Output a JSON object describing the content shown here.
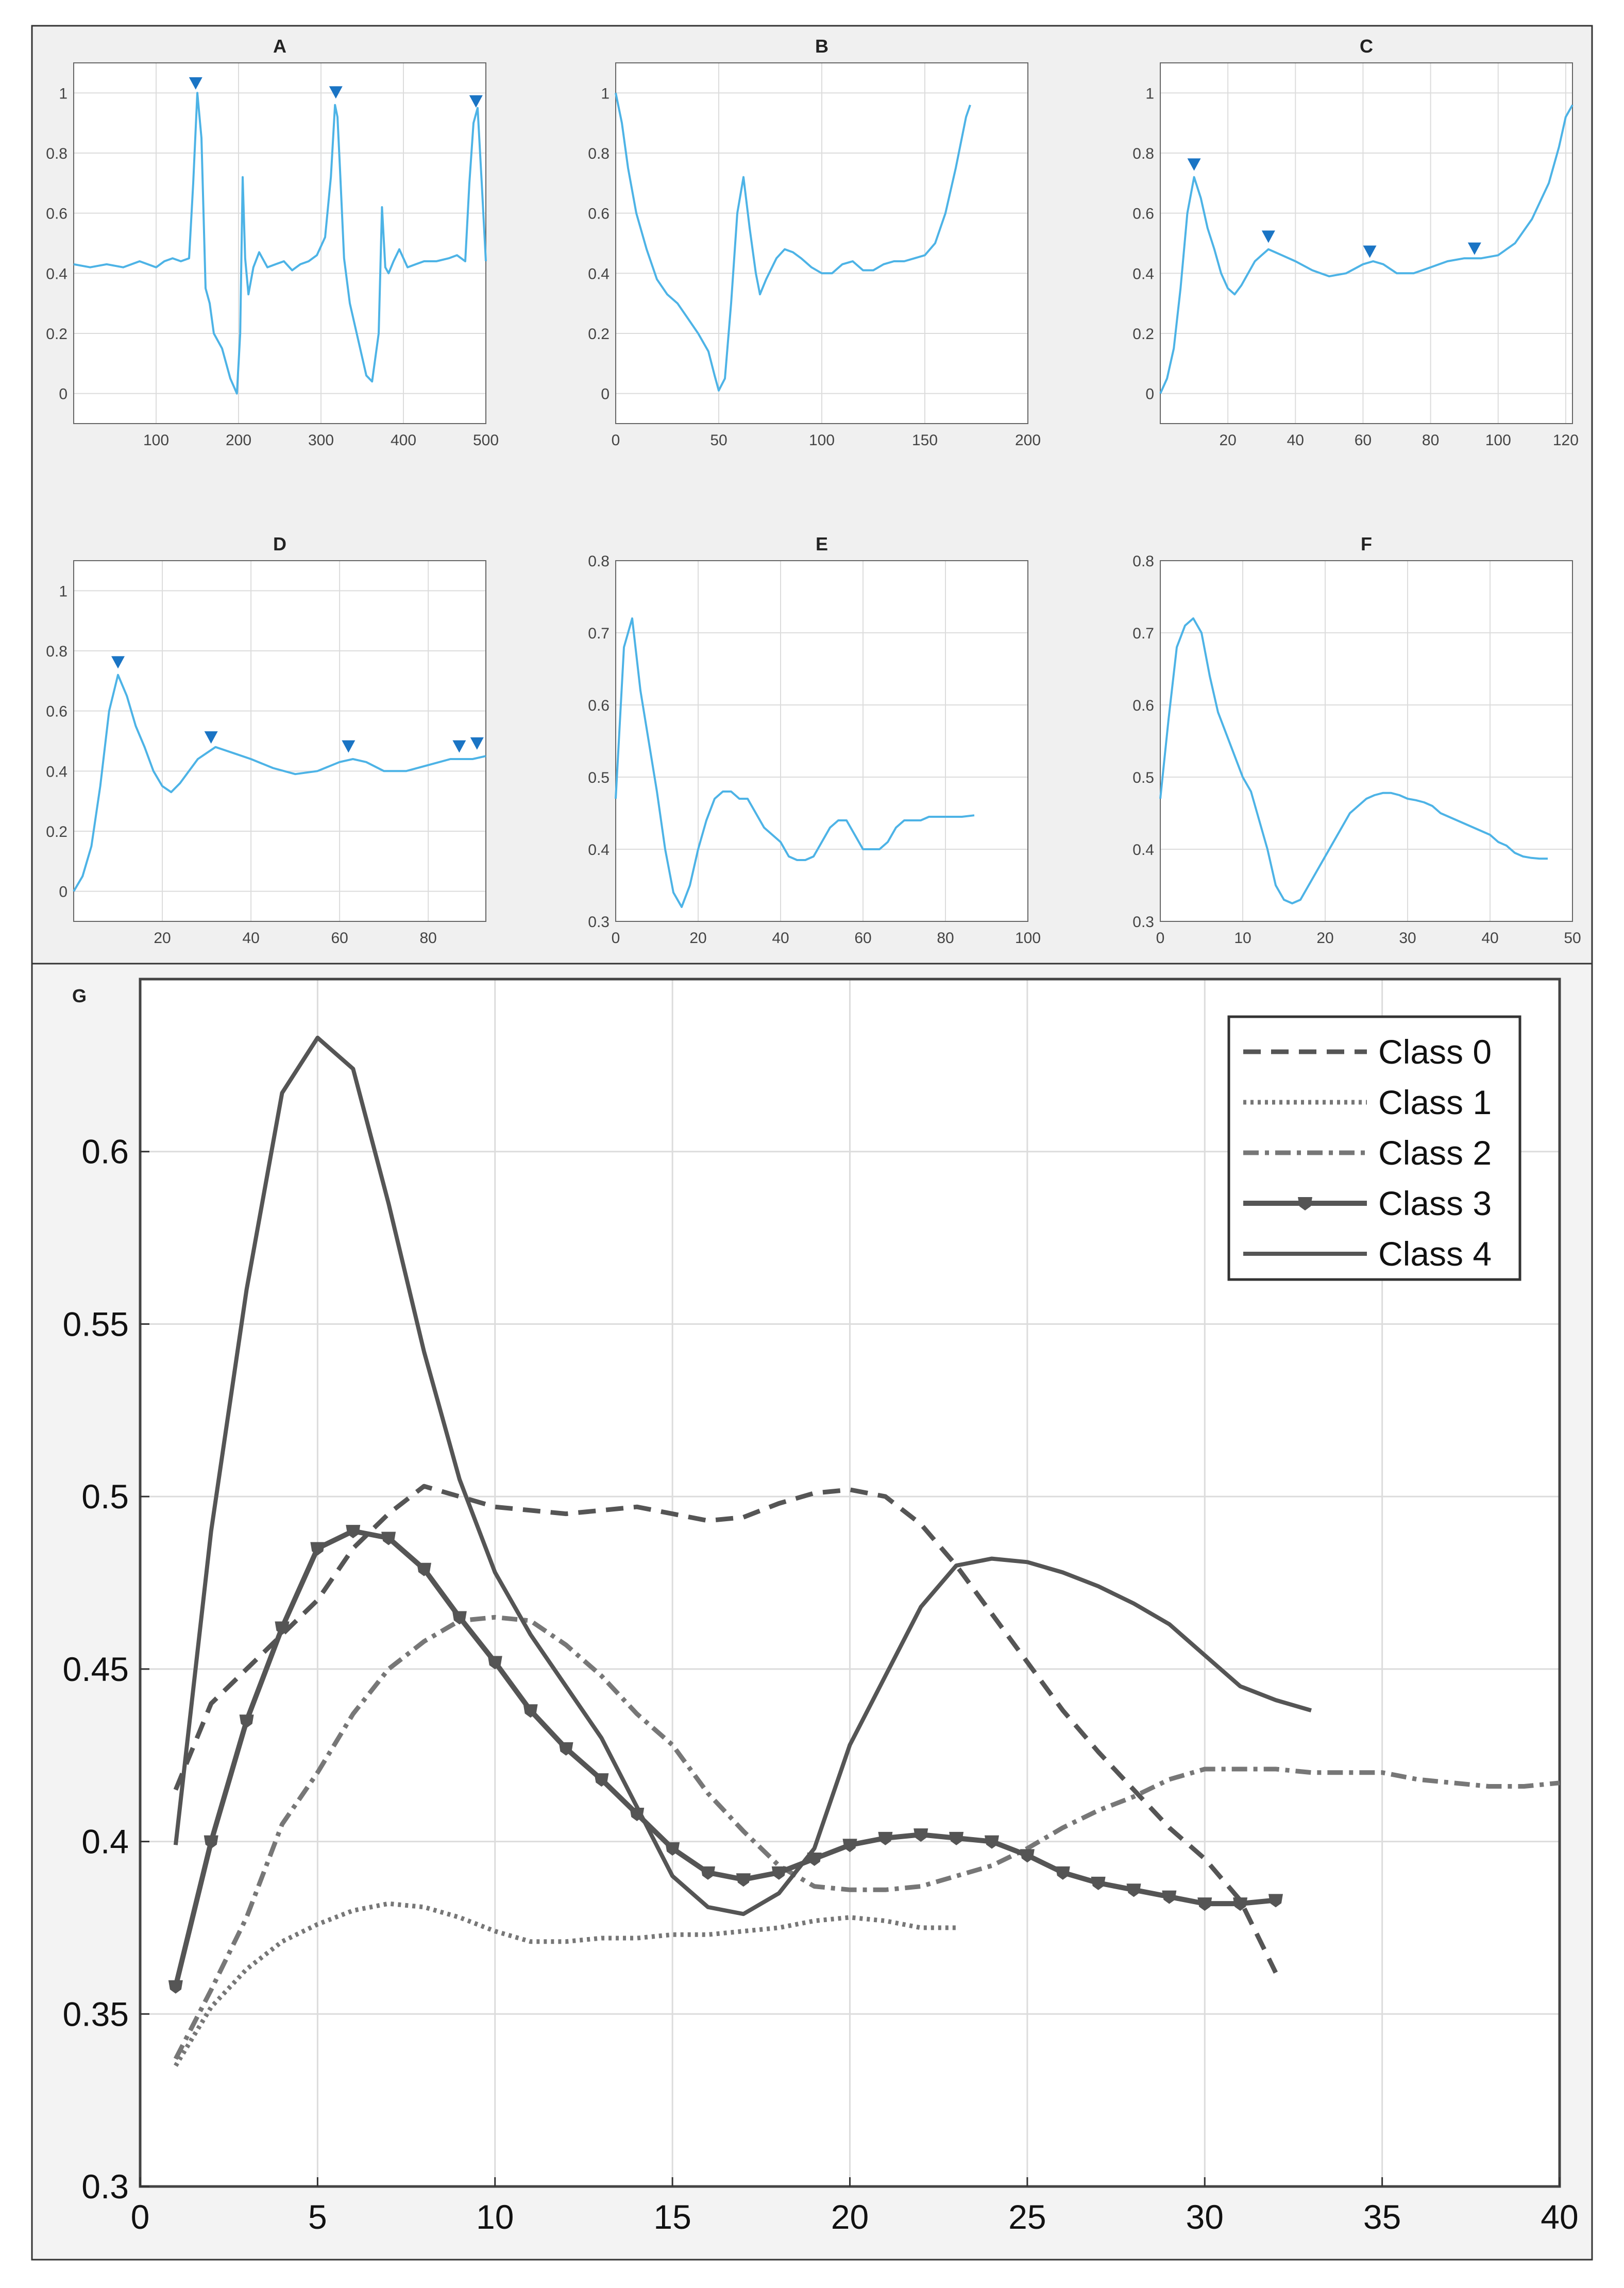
{
  "colors": {
    "top_background": "#f0f0f0",
    "plot_background": "#ffffff",
    "grid": "#dcdcdc",
    "trace": "#4db3e6",
    "marker": "#1a74c4",
    "g_background": "#f3f3f3",
    "g_line": "#555555",
    "g_line_light": "#777777"
  },
  "chart_data": [
    {
      "id": "A",
      "type": "line",
      "title": "A",
      "xlim": [
        0,
        500
      ],
      "ylim": [
        -0.1,
        1.1
      ],
      "xticks": [
        100,
        200,
        300,
        400,
        500
      ],
      "yticks": [
        0,
        0.2,
        0.4,
        0.6,
        0.8,
        1
      ],
      "x": [
        0,
        20,
        40,
        60,
        80,
        100,
        110,
        120,
        130,
        140,
        145,
        150,
        155,
        160,
        165,
        170,
        180,
        190,
        198,
        202,
        205,
        208,
        212,
        218,
        225,
        235,
        245,
        255,
        265,
        275,
        285,
        295,
        305,
        312,
        317,
        320,
        323,
        328,
        335,
        345,
        355,
        362,
        370,
        374,
        378,
        382,
        388,
        395,
        405,
        415,
        425,
        440,
        455,
        465,
        475,
        480,
        485,
        490,
        495,
        500
      ],
      "y": [
        0.43,
        0.42,
        0.43,
        0.42,
        0.44,
        0.42,
        0.44,
        0.45,
        0.44,
        0.45,
        0.7,
        1.0,
        0.85,
        0.35,
        0.3,
        0.2,
        0.15,
        0.05,
        0.0,
        0.2,
        0.72,
        0.45,
        0.33,
        0.42,
        0.47,
        0.42,
        0.43,
        0.44,
        0.41,
        0.43,
        0.44,
        0.46,
        0.52,
        0.72,
        0.96,
        0.92,
        0.75,
        0.45,
        0.3,
        0.18,
        0.06,
        0.04,
        0.2,
        0.62,
        0.42,
        0.4,
        0.44,
        0.48,
        0.42,
        0.43,
        0.44,
        0.44,
        0.45,
        0.46,
        0.44,
        0.7,
        0.9,
        0.95,
        0.7,
        0.44
      ],
      "markers": [
        [
          148,
          1.03
        ],
        [
          318,
          1.0
        ],
        [
          488,
          0.97
        ]
      ]
    },
    {
      "id": "B",
      "type": "line",
      "title": "B",
      "xlim": [
        0,
        200
      ],
      "ylim": [
        -0.1,
        1.1
      ],
      "xticks": [
        0,
        50,
        100,
        150,
        200
      ],
      "yticks": [
        0,
        0.2,
        0.4,
        0.6,
        0.8,
        1
      ],
      "x": [
        0,
        3,
        6,
        10,
        15,
        20,
        25,
        30,
        35,
        40,
        45,
        48,
        50,
        53,
        56,
        59,
        62,
        65,
        68,
        70,
        73,
        78,
        82,
        86,
        90,
        95,
        100,
        105,
        110,
        115,
        120,
        125,
        130,
        135,
        140,
        145,
        150,
        155,
        160,
        165,
        170,
        172
      ],
      "y": [
        1.0,
        0.9,
        0.75,
        0.6,
        0.48,
        0.38,
        0.33,
        0.3,
        0.25,
        0.2,
        0.14,
        0.06,
        0.01,
        0.05,
        0.3,
        0.6,
        0.72,
        0.55,
        0.4,
        0.33,
        0.38,
        0.45,
        0.48,
        0.47,
        0.45,
        0.42,
        0.4,
        0.4,
        0.43,
        0.44,
        0.41,
        0.41,
        0.43,
        0.44,
        0.44,
        0.45,
        0.46,
        0.5,
        0.6,
        0.75,
        0.92,
        0.96
      ],
      "markers": []
    },
    {
      "id": "C",
      "type": "line",
      "title": "C",
      "xlim": [
        0,
        122
      ],
      "ylim": [
        -0.1,
        1.1
      ],
      "xticks": [
        20,
        40,
        60,
        80,
        100,
        120
      ],
      "yticks": [
        0,
        0.2,
        0.4,
        0.6,
        0.8,
        1
      ],
      "x": [
        0,
        2,
        4,
        6,
        8,
        10,
        12,
        14,
        16,
        18,
        20,
        22,
        24,
        26,
        28,
        30,
        32,
        34,
        36,
        40,
        45,
        50,
        55,
        60,
        63,
        66,
        70,
        75,
        80,
        85,
        90,
        95,
        100,
        105,
        110,
        115,
        118,
        120,
        122
      ],
      "y": [
        0.0,
        0.05,
        0.15,
        0.35,
        0.6,
        0.72,
        0.65,
        0.55,
        0.48,
        0.4,
        0.35,
        0.33,
        0.36,
        0.4,
        0.44,
        0.46,
        0.48,
        0.47,
        0.46,
        0.44,
        0.41,
        0.39,
        0.4,
        0.43,
        0.44,
        0.43,
        0.4,
        0.4,
        0.42,
        0.44,
        0.45,
        0.45,
        0.46,
        0.5,
        0.58,
        0.7,
        0.82,
        0.92,
        0.96
      ],
      "markers": [
        [
          10,
          0.76
        ],
        [
          32,
          0.52
        ],
        [
          62,
          0.47
        ],
        [
          93,
          0.48
        ]
      ]
    },
    {
      "id": "D",
      "type": "line",
      "title": "D",
      "xlim": [
        0,
        93
      ],
      "ylim": [
        -0.1,
        1.1
      ],
      "xticks": [
        20,
        40,
        60,
        80
      ],
      "yticks": [
        0,
        0.2,
        0.4,
        0.6,
        0.8,
        1
      ],
      "x": [
        0,
        2,
        4,
        6,
        8,
        10,
        12,
        14,
        16,
        18,
        20,
        22,
        24,
        26,
        28,
        30,
        32,
        34,
        36,
        40,
        45,
        50,
        55,
        60,
        63,
        66,
        70,
        75,
        80,
        85,
        90,
        93
      ],
      "y": [
        0.0,
        0.05,
        0.15,
        0.35,
        0.6,
        0.72,
        0.65,
        0.55,
        0.48,
        0.4,
        0.35,
        0.33,
        0.36,
        0.4,
        0.44,
        0.46,
        0.48,
        0.47,
        0.46,
        0.44,
        0.41,
        0.39,
        0.4,
        0.43,
        0.44,
        0.43,
        0.4,
        0.4,
        0.42,
        0.44,
        0.44,
        0.45
      ],
      "markers": [
        [
          10,
          0.76
        ],
        [
          31,
          0.51
        ],
        [
          62,
          0.48
        ],
        [
          87,
          0.48
        ],
        [
          91,
          0.49
        ]
      ]
    },
    {
      "id": "E",
      "type": "line",
      "title": "E",
      "xlim": [
        0,
        100
      ],
      "ylim": [
        0.3,
        0.8
      ],
      "xticks": [
        0,
        20,
        40,
        60,
        80,
        100
      ],
      "yticks": [
        0.3,
        0.4,
        0.5,
        0.6,
        0.7,
        0.8
      ],
      "x": [
        0,
        2,
        4,
        6,
        8,
        10,
        12,
        14,
        16,
        18,
        20,
        22,
        24,
        26,
        28,
        30,
        32,
        34,
        36,
        38,
        40,
        42,
        44,
        46,
        48,
        50,
        52,
        54,
        56,
        58,
        60,
        62,
        64,
        66,
        68,
        70,
        72,
        74,
        76,
        78,
        80,
        82,
        84,
        87
      ],
      "y": [
        0.47,
        0.68,
        0.72,
        0.62,
        0.55,
        0.48,
        0.4,
        0.34,
        0.32,
        0.35,
        0.4,
        0.44,
        0.47,
        0.48,
        0.48,
        0.47,
        0.47,
        0.45,
        0.43,
        0.42,
        0.41,
        0.39,
        0.385,
        0.385,
        0.39,
        0.41,
        0.43,
        0.44,
        0.44,
        0.42,
        0.4,
        0.4,
        0.4,
        0.41,
        0.43,
        0.44,
        0.44,
        0.44,
        0.445,
        0.445,
        0.445,
        0.445,
        0.445,
        0.447
      ],
      "markers": []
    },
    {
      "id": "F",
      "type": "line",
      "title": "F",
      "xlim": [
        0,
        50
      ],
      "ylim": [
        0.3,
        0.8
      ],
      "xticks": [
        0,
        10,
        20,
        30,
        40,
        50
      ],
      "yticks": [
        0.3,
        0.4,
        0.5,
        0.6,
        0.7,
        0.8
      ],
      "x": [
        0,
        1,
        2,
        3,
        4,
        5,
        6,
        7,
        8,
        9,
        10,
        11,
        12,
        13,
        14,
        15,
        16,
        17,
        18,
        19,
        20,
        21,
        22,
        23,
        24,
        25,
        26,
        27,
        28,
        29,
        30,
        31,
        32,
        33,
        34,
        35,
        36,
        37,
        38,
        39,
        40,
        41,
        42,
        43,
        44,
        45,
        46,
        47
      ],
      "y": [
        0.47,
        0.58,
        0.68,
        0.71,
        0.72,
        0.7,
        0.64,
        0.59,
        0.56,
        0.53,
        0.5,
        0.48,
        0.44,
        0.4,
        0.35,
        0.33,
        0.325,
        0.33,
        0.35,
        0.37,
        0.39,
        0.41,
        0.43,
        0.45,
        0.46,
        0.47,
        0.475,
        0.478,
        0.478,
        0.475,
        0.47,
        0.468,
        0.465,
        0.46,
        0.45,
        0.445,
        0.44,
        0.435,
        0.43,
        0.425,
        0.42,
        0.41,
        0.405,
        0.395,
        0.39,
        0.388,
        0.387,
        0.387
      ],
      "markers": []
    },
    {
      "id": "G",
      "type": "line",
      "title": "G",
      "xlim": [
        0,
        40
      ],
      "ylim": [
        0.3,
        0.65
      ],
      "xticks": [
        0,
        5,
        10,
        15,
        20,
        25,
        30,
        35,
        40
      ],
      "yticks": [
        0.3,
        0.35,
        0.4,
        0.45,
        0.5,
        0.55,
        0.6
      ],
      "legend_position": "top-right",
      "series": [
        {
          "name": "Class 0",
          "style": "dashed",
          "x": [
            1,
            2,
            3,
            4,
            5,
            6,
            7,
            8,
            9,
            10,
            11,
            12,
            13,
            14,
            15,
            16,
            17,
            18,
            19,
            20,
            21,
            22,
            23,
            24,
            25,
            26,
            27,
            28,
            29,
            30,
            31,
            32
          ],
          "y": [
            0.415,
            0.44,
            0.45,
            0.46,
            0.47,
            0.485,
            0.495,
            0.503,
            0.5,
            0.497,
            0.496,
            0.495,
            0.496,
            0.497,
            0.495,
            0.493,
            0.494,
            0.498,
            0.501,
            0.502,
            0.5,
            0.492,
            0.48,
            0.466,
            0.452,
            0.438,
            0.426,
            0.415,
            0.404,
            0.395,
            0.383,
            0.362
          ]
        },
        {
          "name": "Class 1",
          "style": "dotted",
          "x": [
            1,
            2,
            3,
            4,
            5,
            6,
            7,
            8,
            9,
            10,
            11,
            12,
            13,
            14,
            15,
            16,
            17,
            18,
            19,
            20,
            21,
            22,
            23
          ],
          "y": [
            0.335,
            0.352,
            0.363,
            0.371,
            0.376,
            0.38,
            0.382,
            0.381,
            0.378,
            0.374,
            0.371,
            0.371,
            0.372,
            0.372,
            0.373,
            0.373,
            0.374,
            0.375,
            0.377,
            0.378,
            0.377,
            0.375,
            0.375
          ]
        },
        {
          "name": "Class 2",
          "style": "dashdot",
          "x": [
            1,
            2,
            3,
            4,
            5,
            6,
            7,
            8,
            9,
            10,
            11,
            12,
            13,
            14,
            15,
            16,
            17,
            18,
            19,
            20,
            21,
            22,
            23,
            24,
            25,
            26,
            27,
            28,
            29,
            30,
            31,
            32,
            33,
            34,
            35,
            36,
            37,
            38,
            39,
            40
          ],
          "y": [
            0.337,
            0.357,
            0.378,
            0.405,
            0.42,
            0.437,
            0.45,
            0.458,
            0.464,
            0.465,
            0.464,
            0.457,
            0.448,
            0.437,
            0.428,
            0.414,
            0.403,
            0.393,
            0.387,
            0.386,
            0.386,
            0.387,
            0.39,
            0.393,
            0.398,
            0.404,
            0.409,
            0.413,
            0.418,
            0.421,
            0.421,
            0.421,
            0.42,
            0.42,
            0.42,
            0.418,
            0.417,
            0.416,
            0.416,
            0.417
          ]
        },
        {
          "name": "Class 3",
          "style": "solid-marker",
          "x": [
            1,
            2,
            3,
            4,
            5,
            6,
            7,
            8,
            9,
            10,
            11,
            12,
            13,
            14,
            15,
            16,
            17,
            18,
            19,
            20,
            21,
            22,
            23,
            24,
            25,
            26,
            27,
            28,
            29,
            30,
            31,
            32
          ],
          "y": [
            0.358,
            0.4,
            0.435,
            0.462,
            0.485,
            0.49,
            0.488,
            0.479,
            0.465,
            0.452,
            0.438,
            0.427,
            0.418,
            0.408,
            0.398,
            0.391,
            0.389,
            0.391,
            0.395,
            0.399,
            0.401,
            0.402,
            0.401,
            0.4,
            0.396,
            0.391,
            0.388,
            0.386,
            0.384,
            0.382,
            0.382,
            0.383
          ]
        },
        {
          "name": "Class 4",
          "style": "solid",
          "x": [
            1,
            2,
            3,
            4,
            5,
            6,
            7,
            8,
            9,
            10,
            11,
            12,
            13,
            14,
            15,
            16,
            17,
            18,
            19,
            20,
            21,
            22,
            23,
            24,
            25,
            26,
            27,
            28,
            29,
            30,
            31,
            32,
            33
          ],
          "y": [
            0.399,
            0.49,
            0.56,
            0.617,
            0.633,
            0.624,
            0.585,
            0.542,
            0.505,
            0.478,
            0.46,
            0.445,
            0.43,
            0.41,
            0.39,
            0.381,
            0.379,
            0.385,
            0.398,
            0.428,
            0.448,
            0.468,
            0.48,
            0.482,
            0.481,
            0.478,
            0.474,
            0.469,
            0.463,
            0.454,
            0.445,
            0.441,
            0.438
          ]
        }
      ]
    }
  ]
}
